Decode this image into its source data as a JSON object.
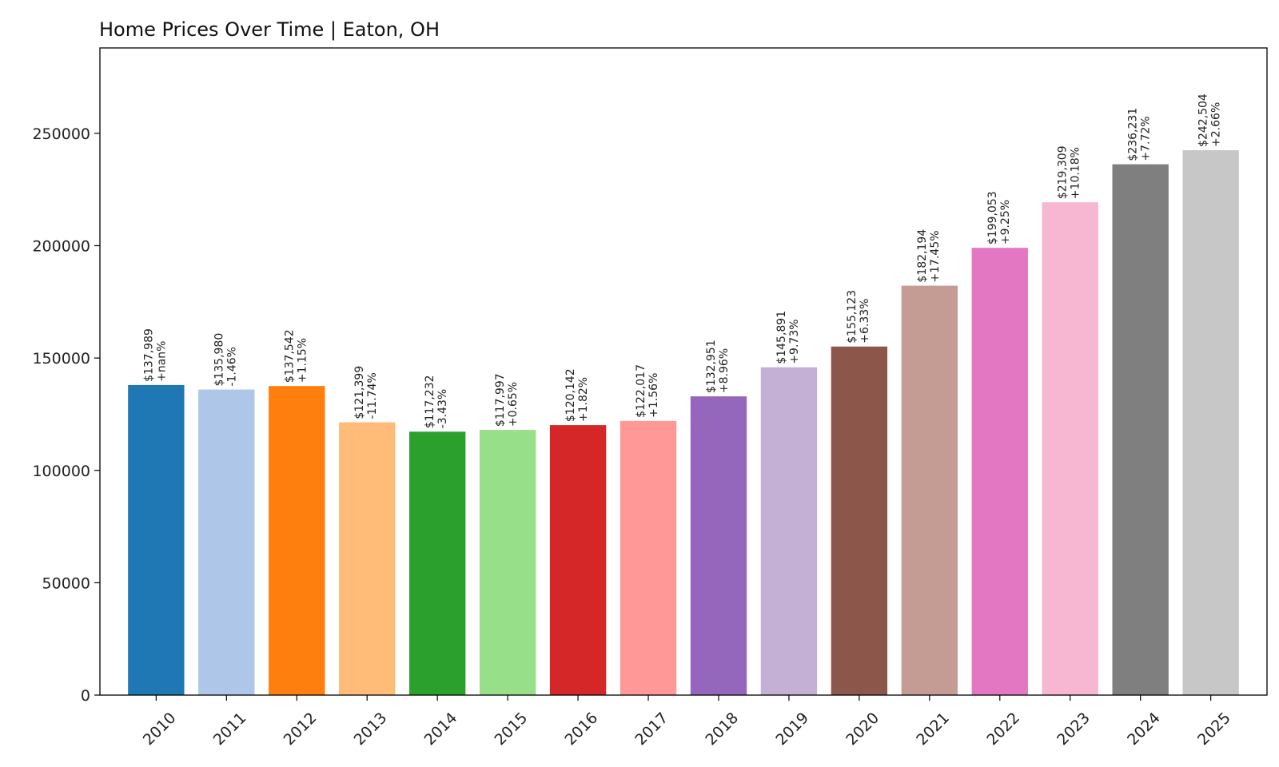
{
  "chart_data": {
    "type": "bar",
    "title": "Home Prices Over Time | Eaton, OH",
    "xlabel": "",
    "ylabel": "",
    "categories": [
      "2010",
      "2011",
      "2012",
      "2013",
      "2014",
      "2015",
      "2016",
      "2017",
      "2018",
      "2019",
      "2020",
      "2021",
      "2022",
      "2023",
      "2024",
      "2025"
    ],
    "values": [
      137989,
      135980,
      137542,
      121399,
      117232,
      117997,
      120142,
      122017,
      132951,
      145891,
      155123,
      182194,
      199053,
      219309,
      236231,
      242504
    ],
    "value_labels": [
      "$137,989",
      "$135,980",
      "$137,542",
      "$121,399",
      "$117,232",
      "$117,997",
      "$120,142",
      "$122,017",
      "$132,951",
      "$145,891",
      "$155,123",
      "$182,194",
      "$199,053",
      "$219,309",
      "$236,231",
      "$242,504"
    ],
    "change_labels": [
      "+nan%",
      "-1.46%",
      "+1.15%",
      "-11.74%",
      "-3.43%",
      "+0.65%",
      "+1.82%",
      "+1.56%",
      "+8.96%",
      "+9.73%",
      "+6.33%",
      "+17.45%",
      "+9.25%",
      "+10.18%",
      "+7.72%",
      "+2.66%"
    ],
    "colors": [
      "#1f77b4",
      "#aec7e8",
      "#ff7f0e",
      "#ffbb78",
      "#2ca02c",
      "#98df8a",
      "#d62728",
      "#ff9896",
      "#9467bd",
      "#c5b0d5",
      "#8c564b",
      "#c49c94",
      "#e377c2",
      "#f7b6d2",
      "#7f7f7f",
      "#c7c7c7"
    ],
    "yticks": [
      0,
      50000,
      100000,
      150000,
      200000,
      250000
    ],
    "ytick_labels": [
      "0",
      "50000",
      "100000",
      "150000",
      "200000",
      "250000"
    ],
    "ylim": [
      0,
      288000
    ],
    "grid": false,
    "legend": "none"
  }
}
